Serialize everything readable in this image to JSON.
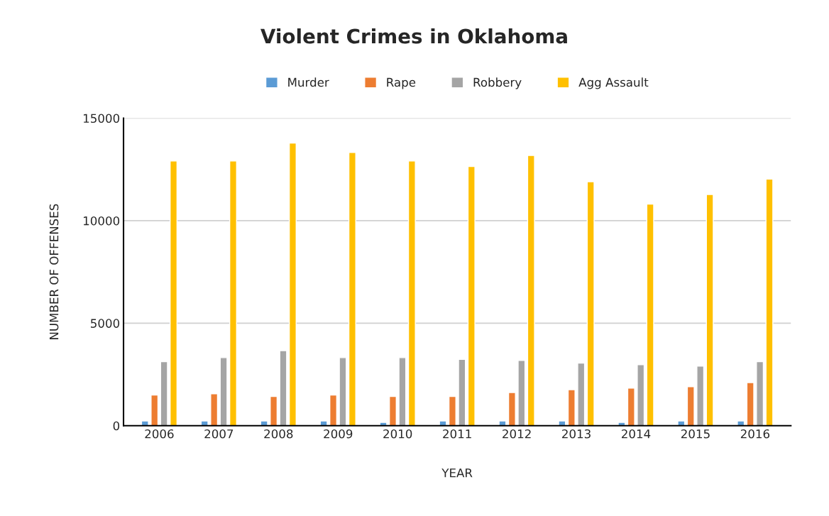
{
  "chart_data": {
    "type": "bar",
    "title": "Violent Crimes in Oklahoma",
    "xlabel": "YEAR",
    "ylabel": "NUMBER OF OFFENSES",
    "categories": [
      "2006",
      "2007",
      "2008",
      "2009",
      "2010",
      "2011",
      "2012",
      "2013",
      "2014",
      "2015",
      "2016"
    ],
    "series": [
      {
        "name": "Murder",
        "color": "#5b9bd5",
        "values": [
          230,
          230,
          230,
          230,
          160,
          230,
          230,
          230,
          160,
          230,
          230
        ]
      },
      {
        "name": "Rape",
        "color": "#ed7d31",
        "values": [
          1500,
          1560,
          1430,
          1500,
          1430,
          1430,
          1620,
          1760,
          1830,
          1900,
          2100
        ]
      },
      {
        "name": "Robbery",
        "color": "#a5a5a5",
        "values": [
          3120,
          3320,
          3660,
          3320,
          3320,
          3240,
          3180,
          3050,
          2980,
          2910,
          3120
        ]
      },
      {
        "name": "Agg Assault",
        "color": "#ffc000",
        "values": [
          12910,
          12910,
          13790,
          13330,
          12910,
          12640,
          13180,
          11900,
          10810,
          11280,
          12030
        ]
      }
    ],
    "ylim": [
      0,
      15000
    ],
    "yticks": [
      0,
      5000,
      10000,
      15000
    ],
    "grid": "y",
    "legend": "top"
  }
}
